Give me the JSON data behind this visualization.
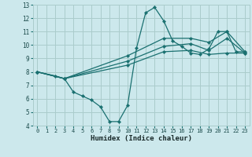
{
  "title": "",
  "xlabel": "Humidex (Indice chaleur)",
  "bg_color": "#cce8ec",
  "grid_color": "#aacccc",
  "line_color": "#1a7070",
  "xlim": [
    -0.5,
    23.5
  ],
  "ylim": [
    4,
    13
  ],
  "xticks": [
    0,
    1,
    2,
    3,
    4,
    5,
    6,
    7,
    8,
    9,
    10,
    11,
    12,
    13,
    14,
    15,
    16,
    17,
    18,
    19,
    20,
    21,
    22,
    23
  ],
  "yticks": [
    4,
    5,
    6,
    7,
    8,
    9,
    10,
    11,
    12,
    13
  ],
  "lines": [
    {
      "x": [
        0,
        2,
        3,
        4,
        5,
        6,
        7,
        8,
        9,
        10,
        11,
        12,
        13,
        14,
        15,
        16,
        17,
        18,
        19,
        20,
        21,
        22,
        23
      ],
      "y": [
        8,
        7.7,
        7.5,
        6.5,
        6.2,
        5.9,
        5.4,
        4.3,
        4.3,
        5.5,
        9.8,
        12.4,
        12.8,
        11.8,
        10.3,
        9.9,
        9.4,
        9.3,
        9.7,
        11.0,
        11.0,
        9.5,
        9.5
      ]
    },
    {
      "x": [
        0,
        3,
        10,
        14,
        17,
        19,
        21,
        23
      ],
      "y": [
        8,
        7.5,
        8.5,
        9.5,
        9.6,
        9.3,
        9.4,
        9.4
      ]
    },
    {
      "x": [
        0,
        3,
        10,
        14,
        17,
        19,
        21,
        23
      ],
      "y": [
        8,
        7.5,
        8.8,
        9.9,
        10.1,
        9.6,
        10.5,
        9.4
      ]
    },
    {
      "x": [
        0,
        3,
        10,
        14,
        17,
        19,
        21,
        23
      ],
      "y": [
        8,
        7.5,
        9.2,
        10.5,
        10.5,
        10.2,
        11.0,
        9.5
      ]
    }
  ]
}
